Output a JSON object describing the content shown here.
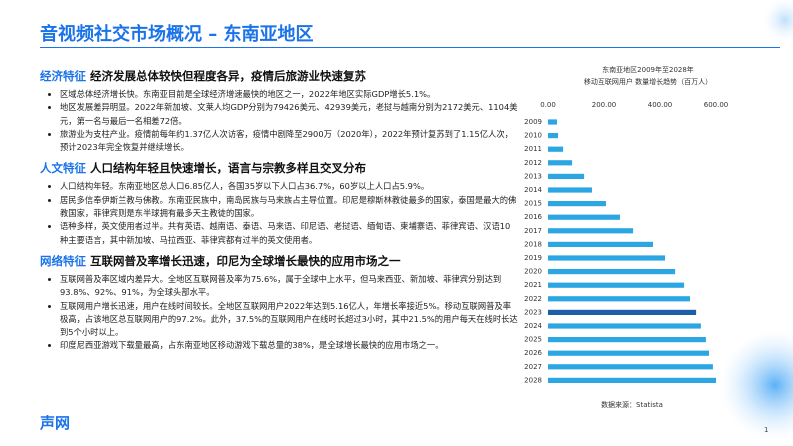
{
  "header": {
    "title": "音视频社交市场概况 – 东南亚地区"
  },
  "sections": [
    {
      "label": "经济特征",
      "heading": "经济发展总体较快但程度各异，疫情后旅游业快速复苏",
      "bullets": [
        "区域总体经济增长快。东南亚目前是全球经济增速最快的地区之一，2022年地区实际GDP增长5.1%。",
        "地区发展差异明显。2022年新加坡、文莱人均GDP分别为79426美元、42939美元，老挝与越南分别为2172美元、1104美元，第一名与最后一名相差72倍。",
        "旅游业为支柱产业。疫情前每年约1.37亿人次访客，疫情中剧降至2900万（2020年），2022年预计复苏到了1.15亿人次，预计2023年完全恢复并继续增长。"
      ]
    },
    {
      "label": "人文特征",
      "heading": "人口结构年轻且快速增长，语言与宗教多样且交叉分布",
      "bullets": [
        "人口结构年轻。东南亚地区总人口6.85亿人，各国35岁以下人口占36.7%，60岁以上人口占5.9%。",
        "居民多信奉伊斯兰教与佛教。东南亚民族中，南岛民族与马来族占主导位置。印尼是穆斯林教徒最多的国家，泰国是最大的佛教国家，菲律宾则是东半球拥有最多天主教徒的国家。",
        "语种多样，英文使用者过半。共有英语、越南语、泰语、马来语、印尼语、老挝语、缅甸语、柬埔寨语、菲律宾语、汉语10种主要语言，其中新加坡、马拉西亚、菲律宾都有过半的英文使用者。"
      ]
    },
    {
      "label": "网络特征",
      "heading": "互联网普及率增长迅速，印尼为全球增长最快的应用市场之一",
      "bullets": [
        "互联网普及率区域内差异大。全地区互联网普及率为75.6%，属于全球中上水平，但马来西亚、新加坡、菲律宾分别达到93.8%、92%、91%，为全球头部水平。",
        "互联网用户增长迅速，用户在线时间较长。全地区互联网用户2022年达到5.16亿人，年增长率接近5%。移动互联网普及率极高，占该地区总互联网用户的97.2%。此外，37.5%的互联网用户在线时长超过3小时，其中21.5%的用户每天在线时长达到5个小时以上。",
        "印度尼西亚游戏下载量最高，占东南亚地区移动游戏下载总量的38%，是全球增长最快的应用市场之一。"
      ]
    }
  ],
  "footer": {
    "logo": "声网",
    "page_number": "1"
  },
  "chart_data": {
    "type": "hbar",
    "title": [
      "东南亚地区2009年至2028年",
      "移动互联网用户 数量增长趋势（百万人）"
    ],
    "source": "数据来源：Statista",
    "categories": [
      "2009",
      "2010",
      "2011",
      "2012",
      "2013",
      "2014",
      "2015",
      "2016",
      "2017",
      "2018",
      "2019",
      "2020",
      "2021",
      "2022",
      "2023",
      "2024",
      "2025",
      "2026",
      "2027",
      "2028"
    ],
    "values": [
      32,
      36,
      54,
      86,
      129,
      157,
      207,
      257,
      304,
      375,
      418,
      454,
      486,
      507,
      529,
      546,
      564,
      575,
      589,
      600
    ],
    "colors": [
      "#2ba6e3",
      "#2ba6e3",
      "#2ba6e3",
      "#2ba6e3",
      "#2ba6e3",
      "#2ba6e3",
      "#2ba6e3",
      "#2ba6e3",
      "#2ba6e3",
      "#2ba6e3",
      "#2ba6e3",
      "#2ba6e3",
      "#2ba6e3",
      "#2ba6e3",
      "#1d5ea8",
      "#2ba6e3",
      "#2ba6e3",
      "#2ba6e3",
      "#2ba6e3",
      "#2ba6e3"
    ],
    "xlim": [
      0,
      600
    ],
    "xticks": [
      {
        "value": 0,
        "label": "0.00"
      },
      {
        "value": 200,
        "label": "200.00"
      },
      {
        "value": 400,
        "label": "400.00"
      },
      {
        "value": 600,
        "label": "600.00"
      }
    ],
    "grid": false
  }
}
